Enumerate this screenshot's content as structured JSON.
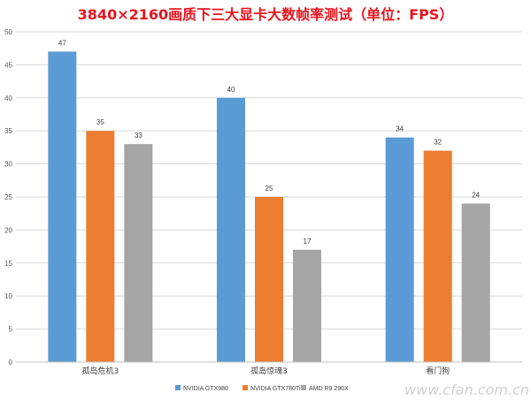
{
  "chart_data": {
    "type": "bar",
    "title": "3840×2160画质下三大显卡大数帧率测试（单位：FPS）",
    "categories": [
      "孤岛危机3",
      "孤岛惊魂3",
      "看门狗"
    ],
    "series": [
      {
        "name": "NVIDIA GTX980",
        "values": [
          47,
          40,
          34
        ],
        "color": "#5B9BD5"
      },
      {
        "name": "NVIDIA GTX780Ti",
        "values": [
          35,
          25,
          32
        ],
        "color": "#ED7D31"
      },
      {
        "name": "AMD R9 290X",
        "values": [
          33,
          17,
          24
        ],
        "color": "#A5A5A5"
      }
    ],
    "ylim": [
      0,
      50
    ],
    "yticks": [
      0,
      5,
      10,
      15,
      20,
      25,
      30,
      35,
      40,
      45,
      50
    ],
    "grid": true,
    "legend_position": "bottom",
    "title_color": "#E8141E"
  },
  "watermark": "www.cfan.com.cn"
}
